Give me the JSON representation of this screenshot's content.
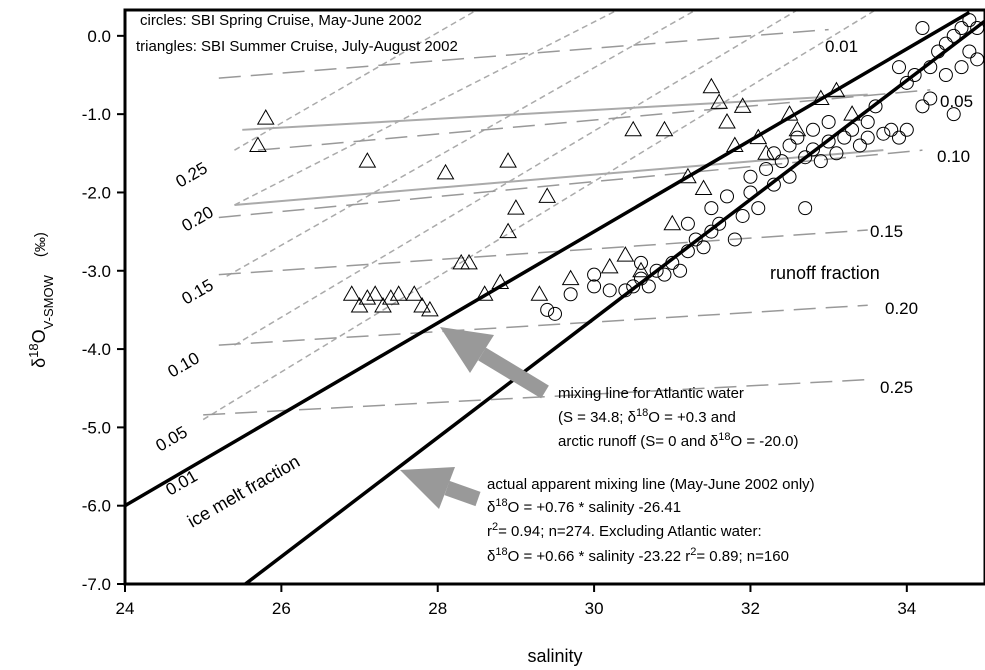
{
  "chart_data": {
    "type": "scatter",
    "xlim": [
      24,
      35
    ],
    "ylim": [
      -7,
      0.33
    ],
    "xticks": [
      24,
      26,
      28,
      30,
      32,
      34
    ],
    "yticks": [
      {
        "value": 0,
        "label": "0.0"
      },
      {
        "value": -1,
        "label": "-1.0"
      },
      {
        "value": -2,
        "label": "-2.0"
      },
      {
        "value": -3,
        "label": "-3.0"
      },
      {
        "value": -4,
        "label": "-4.0"
      },
      {
        "value": -5,
        "label": "-5.0"
      },
      {
        "value": -6,
        "label": "-6.0"
      },
      {
        "value": -7,
        "label": "-7.0"
      }
    ],
    "x_label": "salinity",
    "y_label": [
      "δ",
      "18",
      "O",
      "V-SMOW"
    ],
    "y_unit": "(‰)",
    "legend": [
      "circles: SBI Spring Cruise, May-June 2002",
      "triangles: SBI Summer Cruise, July-August 2002"
    ],
    "series": [
      {
        "name": "SBI Spring Cruise, May-June 2002",
        "marker": "circle",
        "color": "#000000",
        "x": [
          29.4,
          29.5,
          29.7,
          30.0,
          30.0,
          30.2,
          30.4,
          30.5,
          30.6,
          30.7,
          30.8,
          30.9,
          31.0,
          31.1,
          31.2,
          31.3,
          31.4,
          31.5,
          31.5,
          31.6,
          31.7,
          31.8,
          31.9,
          32.0,
          32.0,
          32.1,
          32.2,
          32.3,
          32.3,
          32.4,
          32.5,
          32.5,
          32.6,
          32.7,
          32.8,
          32.8,
          32.9,
          33.0,
          33.0,
          33.1,
          33.2,
          33.3,
          33.4,
          33.5,
          33.5,
          33.6,
          33.7,
          33.8,
          33.9,
          34.0,
          34.0,
          34.1,
          34.2,
          34.3,
          34.3,
          34.4,
          34.5,
          34.5,
          34.6,
          34.7,
          34.7,
          34.8,
          34.8,
          34.9,
          34.9,
          34.2,
          33.9,
          34.6,
          32.7,
          31.2,
          30.6
        ],
        "values": [
          -3.5,
          -3.55,
          -3.3,
          -3.2,
          -3.05,
          -3.25,
          -3.25,
          -3.2,
          -3.1,
          -3.2,
          -3.0,
          -3.05,
          -2.9,
          -3.0,
          -2.75,
          -2.6,
          -2.7,
          -2.5,
          -2.2,
          -2.4,
          -2.05,
          -2.6,
          -2.3,
          -2.0,
          -1.8,
          -2.2,
          -1.7,
          -1.9,
          -1.5,
          -1.6,
          -1.4,
          -1.8,
          -1.3,
          -1.55,
          -1.2,
          -1.45,
          -1.6,
          -1.1,
          -1.35,
          -1.5,
          -1.3,
          -1.2,
          -1.4,
          -1.1,
          -1.3,
          -0.9,
          -1.25,
          -1.2,
          -1.3,
          -0.6,
          -1.2,
          -0.5,
          -0.9,
          -0.4,
          -0.8,
          -0.2,
          -0.1,
          -0.5,
          0.0,
          0.1,
          -0.4,
          0.2,
          -0.2,
          0.1,
          -0.3,
          0.1,
          -0.4,
          -1.0,
          -2.2,
          -2.4,
          -2.9
        ]
      },
      {
        "name": "SBI Summer Cruise, July-August 2002",
        "marker": "triangle",
        "color": "#000000",
        "x": [
          25.8,
          25.7,
          27.1,
          28.1,
          28.9,
          29.4,
          26.9,
          27.0,
          27.1,
          27.2,
          27.3,
          27.4,
          27.5,
          27.7,
          27.8,
          27.9,
          28.3,
          28.4,
          28.6,
          28.8,
          28.9,
          29.0,
          29.3,
          29.7,
          30.2,
          30.4,
          30.5,
          30.6,
          30.9,
          31.0,
          31.2,
          31.4,
          31.5,
          31.6,
          31.7,
          31.8,
          31.9,
          32.1,
          32.2,
          32.5,
          32.6,
          32.9,
          33.1,
          33.3
        ],
        "values": [
          -1.05,
          -1.4,
          -1.6,
          -1.75,
          -1.6,
          -2.05,
          -3.3,
          -3.45,
          -3.35,
          -3.3,
          -3.45,
          -3.35,
          -3.3,
          -3.3,
          -3.45,
          -3.5,
          -2.9,
          -2.9,
          -3.3,
          -3.15,
          -2.5,
          -2.2,
          -3.3,
          -3.1,
          -2.95,
          -2.8,
          -1.2,
          -3.0,
          -1.2,
          -2.4,
          -1.8,
          -1.95,
          -0.65,
          -0.85,
          -1.1,
          -1.4,
          -0.9,
          -1.3,
          -1.5,
          -1.0,
          -1.2,
          -0.8,
          -0.7,
          -1.0
        ]
      }
    ],
    "mixing_lines": [
      {
        "x": [
          24,
          34.8
        ],
        "values": [
          -6.0,
          0.3
        ]
      },
      {
        "x": [
          25.5,
          35
        ],
        "values": [
          -7.03,
          0.19
        ]
      }
    ],
    "runoff_fraction_lines": [
      {
        "label": "0.01",
        "x": [
          25.2,
          33.0
        ],
        "values": [
          -0.54,
          0.08
        ]
      },
      {
        "label": "0.05",
        "x": [
          25.7,
          34.3
        ],
        "values": [
          -1.46,
          -0.69
        ]
      },
      {
        "label": "0.10",
        "x": [
          25.2,
          34.2
        ],
        "values": [
          -2.32,
          -1.46
        ]
      },
      {
        "label": "0.15",
        "x": [
          25.2,
          33.5
        ],
        "values": [
          -3.05,
          -2.48
        ]
      },
      {
        "label": "0.20",
        "x": [
          25.2,
          33.5
        ],
        "values": [
          -3.95,
          -3.44
        ]
      },
      {
        "label": "0.25",
        "x": [
          25.0,
          33.5
        ],
        "values": [
          -4.84,
          -4.39
        ]
      }
    ],
    "ice_melt_fraction_lines": [
      {
        "label": "0.25",
        "x": [
          25.4,
          28.5
        ],
        "values": [
          -1.46,
          0.33
        ]
      },
      {
        "label": "0.20",
        "x": [
          25.4,
          30.3
        ],
        "values": [
          -2.16,
          0.33
        ]
      },
      {
        "label": "0.15",
        "x": [
          25.3,
          31.3
        ],
        "values": [
          -3.07,
          0.33
        ]
      },
      {
        "label": "0.10",
        "x": [
          25.4,
          32.6
        ],
        "values": [
          -3.95,
          0.33
        ]
      },
      {
        "label": "0.05",
        "x": [
          25.0,
          33.6
        ],
        "values": [
          -4.9,
          0.33
        ]
      },
      {
        "label": "0.01",
        "x": null,
        "values": null
      }
    ],
    "solid_gray_lines": [
      {
        "x": [
          25.5,
          33.5
        ],
        "values": [
          -1.2,
          -0.75
        ]
      },
      {
        "x": [
          25.4,
          33.7
        ],
        "values": [
          -2.16,
          -1.46
        ]
      }
    ],
    "runoff_title": "runoff fraction",
    "ice_melt_title": "ice melt fraction",
    "annotations": [
      [
        "mixing line for Atlantic water"
      ],
      [
        "(S = 34.8; δ",
        "18",
        "O = +0.3 and"
      ],
      [
        "arctic runoff (S= 0 and δ",
        "18",
        "O = -20.0)"
      ],
      [
        "actual apparent mixing line (May-June 2002 only)"
      ],
      [
        "δ",
        "18",
        "O = +0.76 * salinity -26.41"
      ],
      [
        "r",
        "2",
        "= 0.94; n=274. Excluding Atlantic water:"
      ],
      [
        "δ",
        "18",
        "O = +0.66 * salinity -23.22 r",
        "2",
        "= 0.89; n=160"
      ]
    ]
  }
}
